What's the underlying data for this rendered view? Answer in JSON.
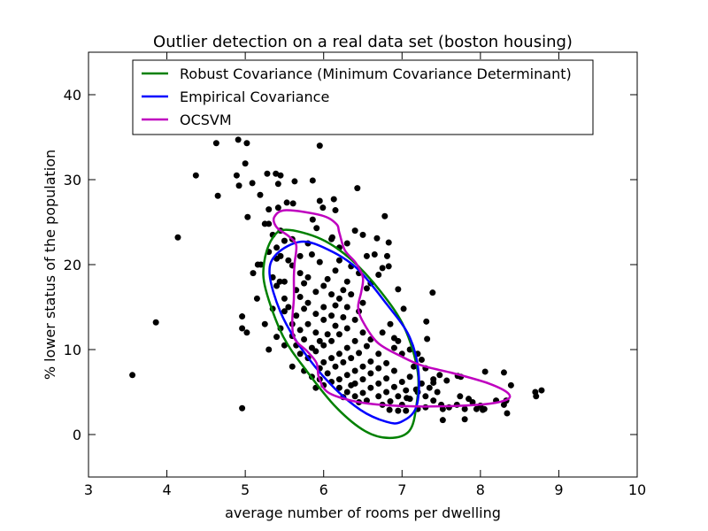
{
  "chart_data": {
    "type": "scatter",
    "title": "Outlier detection on a real data set (boston housing)",
    "xlabel": "average number of rooms per dwelling",
    "ylabel": "% lower status of the population",
    "xlim": [
      3,
      10
    ],
    "ylim": [
      -5,
      45
    ],
    "xticks": [
      3,
      4,
      5,
      6,
      7,
      8,
      9,
      10
    ],
    "yticks": [
      0,
      10,
      20,
      30,
      40
    ],
    "grid": false,
    "legend_position": "top",
    "legend": [
      {
        "label": "Robust Covariance (Minimum Covariance Determinant)",
        "color": "#008000"
      },
      {
        "label": "Empirical Covariance",
        "color": "#0000ff"
      },
      {
        "label": "OCSVM",
        "color": "#bf00bf"
      }
    ],
    "marker_color": "#000000",
    "contours": [
      {
        "name": "Robust Covariance (Minimum Covariance Determinant)",
        "color": "#008000",
        "points": [
          [
            5.52,
            24.1
          ],
          [
            5.97,
            23.0
          ],
          [
            6.35,
            20.6
          ],
          [
            6.73,
            16.8
          ],
          [
            7.03,
            12.6
          ],
          [
            7.2,
            7.4
          ],
          [
            7.18,
            3.2
          ],
          [
            7.09,
            0.4
          ],
          [
            6.84,
            -0.4
          ],
          [
            6.53,
            0.4
          ],
          [
            6.16,
            3.2
          ],
          [
            5.79,
            7.4
          ],
          [
            5.48,
            11.6
          ],
          [
            5.26,
            17.1
          ],
          [
            5.24,
            20.2
          ],
          [
            5.34,
            23.0
          ]
        ]
      },
      {
        "name": "Empirical Covariance",
        "color": "#0000ff",
        "points": [
          [
            5.71,
            22.7
          ],
          [
            6.05,
            21.8
          ],
          [
            6.42,
            19.6
          ],
          [
            6.8,
            15.4
          ],
          [
            7.09,
            11.6
          ],
          [
            7.21,
            7.4
          ],
          [
            7.18,
            3.2
          ],
          [
            6.99,
            1.5
          ],
          [
            6.8,
            1.5
          ],
          [
            6.47,
            2.9
          ],
          [
            6.08,
            6.0
          ],
          [
            5.71,
            10.2
          ],
          [
            5.45,
            14.4
          ],
          [
            5.31,
            18.9
          ],
          [
            5.4,
            21.25
          ]
        ]
      },
      {
        "name": "OCSVM",
        "color": "#bf00bf",
        "points": [
          [
            5.37,
            25.6
          ],
          [
            5.52,
            26.4
          ],
          [
            5.97,
            25.8
          ],
          [
            6.16,
            24.8
          ],
          [
            6.2,
            23.75
          ],
          [
            6.27,
            21.7
          ],
          [
            6.41,
            20.2
          ],
          [
            6.5,
            18.5
          ],
          [
            6.48,
            16.8
          ],
          [
            6.44,
            15.0
          ],
          [
            6.5,
            13.3
          ],
          [
            6.69,
            10.8
          ],
          [
            6.99,
            9.2
          ],
          [
            7.26,
            8.1
          ],
          [
            7.66,
            7.2
          ],
          [
            8.11,
            6.0
          ],
          [
            8.36,
            4.8
          ],
          [
            8.31,
            4.0
          ],
          [
            7.97,
            3.5
          ],
          [
            7.29,
            3.3
          ],
          [
            6.73,
            3.5
          ],
          [
            6.35,
            4.0
          ],
          [
            6.05,
            5.0
          ],
          [
            5.94,
            6.7
          ],
          [
            5.91,
            8.4
          ],
          [
            5.79,
            9.8
          ],
          [
            5.63,
            11.25
          ],
          [
            5.6,
            13.3
          ],
          [
            5.62,
            16.0
          ],
          [
            5.62,
            18.5
          ],
          [
            5.63,
            20.2
          ],
          [
            5.65,
            22.3
          ],
          [
            5.56,
            23.3
          ],
          [
            5.4,
            24.4
          ]
        ]
      }
    ],
    "points": [
      [
        4.63,
        34.3
      ],
      [
        4.91,
        34.7
      ],
      [
        5.02,
        34.3
      ],
      [
        5.95,
        34.0
      ],
      [
        4.37,
        30.5
      ],
      [
        5.0,
        31.9
      ],
      [
        4.89,
        30.5
      ],
      [
        4.92,
        29.3
      ],
      [
        5.09,
        29.6
      ],
      [
        5.28,
        30.7
      ],
      [
        5.39,
        30.7
      ],
      [
        5.45,
        30.5
      ],
      [
        5.63,
        29.8
      ],
      [
        5.86,
        29.9
      ],
      [
        5.42,
        29.5
      ],
      [
        4.65,
        28.1
      ],
      [
        5.19,
        28.2
      ],
      [
        5.03,
        25.6
      ],
      [
        5.3,
        26.5
      ],
      [
        5.42,
        26.7
      ],
      [
        5.53,
        27.3
      ],
      [
        5.61,
        27.2
      ],
      [
        5.95,
        27.5
      ],
      [
        6.13,
        27.7
      ],
      [
        5.99,
        26.7
      ],
      [
        6.15,
        26.4
      ],
      [
        5.3,
        24.8
      ],
      [
        5.86,
        25.3
      ],
      [
        5.91,
        24.3
      ],
      [
        4.14,
        23.2
      ],
      [
        6.11,
        23.2
      ],
      [
        5.16,
        20.0
      ],
      [
        5.4,
        20.7
      ],
      [
        5.44,
        18.0
      ],
      [
        3.56,
        7.0
      ],
      [
        3.86,
        13.2
      ],
      [
        4.96,
        13.9
      ],
      [
        4.96,
        12.5
      ],
      [
        5.02,
        12.0
      ],
      [
        4.96,
        3.1
      ],
      [
        6.43,
        29.0
      ],
      [
        6.78,
        25.7
      ],
      [
        6.68,
        23.1
      ],
      [
        6.83,
        22.6
      ],
      [
        6.81,
        21.0
      ],
      [
        6.83,
        19.8
      ],
      [
        6.95,
        17.1
      ],
      [
        7.02,
        14.8
      ],
      [
        7.39,
        16.7
      ],
      [
        7.31,
        13.3
      ],
      [
        7.32,
        11.25
      ],
      [
        6.9,
        11.35
      ],
      [
        7.48,
        7.0
      ],
      [
        7.4,
        6.1
      ],
      [
        7.52,
        1.7
      ],
      [
        8.06,
        7.4
      ],
      [
        8.3,
        7.3
      ],
      [
        8.39,
        5.8
      ],
      [
        8.33,
        4.0
      ],
      [
        8.34,
        2.5
      ],
      [
        8.7,
        5.0
      ],
      [
        8.71,
        4.5
      ],
      [
        8.78,
        5.2
      ],
      [
        7.8,
        1.8
      ],
      [
        8.03,
        2.9
      ],
      [
        7.74,
        4.5
      ],
      [
        7.52,
        3.0
      ],
      [
        7.18,
        5.3
      ],
      [
        7.06,
        4.3
      ],
      [
        6.84,
        2.9
      ],
      [
        7.71,
        6.9
      ],
      [
        7.57,
        6.35
      ],
      [
        5.6,
        19.9
      ],
      [
        5.7,
        19.0
      ],
      [
        5.75,
        17.8
      ],
      [
        5.8,
        18.5
      ],
      [
        5.65,
        17.0
      ],
      [
        5.7,
        16.2
      ],
      [
        5.8,
        15.5
      ],
      [
        5.9,
        16.8
      ],
      [
        6.0,
        17.5
      ],
      [
        6.05,
        18.3
      ],
      [
        6.1,
        16.5
      ],
      [
        6.0,
        15.0
      ],
      [
        5.9,
        14.2
      ],
      [
        5.75,
        14.8
      ],
      [
        5.65,
        14.0
      ],
      [
        5.6,
        13.0
      ],
      [
        5.7,
        12.3
      ],
      [
        5.8,
        13.0
      ],
      [
        5.9,
        12.0
      ],
      [
        6.0,
        13.5
      ],
      [
        6.1,
        14.0
      ],
      [
        6.15,
        15.2
      ],
      [
        6.2,
        16.0
      ],
      [
        6.25,
        17.0
      ],
      [
        6.3,
        18.0
      ],
      [
        6.35,
        16.5
      ],
      [
        6.3,
        15.0
      ],
      [
        6.25,
        13.8
      ],
      [
        6.15,
        12.8
      ],
      [
        6.05,
        11.8
      ],
      [
        5.95,
        11.0
      ],
      [
        5.85,
        10.2
      ],
      [
        5.75,
        11.2
      ],
      [
        5.65,
        10.5
      ],
      [
        5.6,
        11.6
      ],
      [
        5.7,
        9.5
      ],
      [
        5.8,
        9.0
      ],
      [
        5.9,
        9.8
      ],
      [
        6.0,
        10.5
      ],
      [
        6.1,
        11.0
      ],
      [
        6.2,
        11.8
      ],
      [
        6.3,
        12.5
      ],
      [
        6.4,
        13.5
      ],
      [
        6.45,
        14.5
      ],
      [
        6.5,
        12.0
      ],
      [
        6.4,
        11.0
      ],
      [
        6.3,
        10.2
      ],
      [
        6.2,
        9.5
      ],
      [
        6.1,
        9.0
      ],
      [
        6.0,
        8.5
      ],
      [
        5.95,
        7.8
      ],
      [
        6.05,
        7.2
      ],
      [
        6.15,
        8.0
      ],
      [
        6.25,
        8.5
      ],
      [
        6.35,
        9.0
      ],
      [
        6.45,
        9.6
      ],
      [
        6.55,
        10.4
      ],
      [
        6.6,
        11.2
      ],
      [
        6.7,
        9.5
      ],
      [
        6.6,
        8.6
      ],
      [
        6.5,
        8.0
      ],
      [
        6.4,
        7.5
      ],
      [
        6.3,
        7.0
      ],
      [
        6.2,
        6.5
      ],
      [
        6.1,
        6.2
      ],
      [
        6.0,
        5.8
      ],
      [
        5.95,
        6.5
      ],
      [
        6.2,
        5.5
      ],
      [
        6.3,
        5.0
      ],
      [
        6.4,
        6.0
      ],
      [
        6.5,
        6.5
      ],
      [
        6.6,
        7.2
      ],
      [
        6.7,
        7.8
      ],
      [
        6.8,
        8.4
      ],
      [
        6.9,
        7.5
      ],
      [
        6.8,
        6.6
      ],
      [
        6.7,
        6.0
      ],
      [
        6.6,
        5.5
      ],
      [
        6.5,
        4.9
      ],
      [
        6.4,
        4.5
      ],
      [
        6.55,
        4.0
      ],
      [
        6.7,
        4.5
      ],
      [
        6.8,
        5.0
      ],
      [
        6.9,
        5.6
      ],
      [
        7.0,
        6.2
      ],
      [
        7.1,
        6.8
      ],
      [
        7.05,
        5.2
      ],
      [
        6.95,
        4.5
      ],
      [
        6.85,
        3.9
      ],
      [
        7.0,
        3.5
      ],
      [
        7.1,
        4.2
      ],
      [
        7.2,
        5.0
      ],
      [
        7.25,
        6.0
      ],
      [
        7.2,
        3.0
      ],
      [
        6.95,
        2.8
      ],
      [
        7.05,
        2.8
      ],
      [
        6.75,
        3.5
      ],
      [
        6.35,
        5.8
      ],
      [
        6.45,
        3.8
      ],
      [
        6.25,
        4.4
      ],
      [
        7.3,
        4.5
      ],
      [
        7.35,
        5.5
      ],
      [
        7.4,
        4.0
      ],
      [
        7.15,
        8.0
      ],
      [
        7.25,
        8.8
      ],
      [
        7.0,
        9.5
      ],
      [
        6.5,
        15.5
      ],
      [
        6.55,
        17.2
      ],
      [
        6.45,
        19.0
      ],
      [
        6.35,
        19.8
      ],
      [
        6.2,
        20.5
      ],
      [
        6.15,
        19.3
      ],
      [
        5.95,
        20.3
      ],
      [
        5.85,
        21.2
      ],
      [
        5.7,
        21.0
      ],
      [
        5.55,
        20.5
      ],
      [
        5.45,
        21.0
      ],
      [
        5.5,
        18.0
      ],
      [
        5.5,
        16.0
      ],
      [
        5.55,
        15.0
      ],
      [
        5.5,
        14.5
      ],
      [
        5.45,
        12.5
      ],
      [
        5.4,
        11.5
      ],
      [
        5.5,
        10.5
      ],
      [
        5.6,
        8.0
      ],
      [
        5.75,
        7.5
      ],
      [
        5.85,
        6.8
      ],
      [
        5.9,
        5.5
      ],
      [
        6.2,
        22.0
      ],
      [
        6.1,
        23.0
      ],
      [
        6.4,
        24.0
      ],
      [
        6.5,
        23.5
      ],
      [
        6.3,
        22.5
      ],
      [
        6.55,
        21.0
      ],
      [
        6.65,
        21.2
      ],
      [
        6.75,
        19.6
      ],
      [
        6.7,
        18.8
      ],
      [
        6.6,
        17.8
      ],
      [
        6.85,
        13.0
      ],
      [
        6.75,
        12.0
      ],
      [
        6.9,
        10.2
      ],
      [
        6.95,
        11.0
      ],
      [
        7.1,
        10.0
      ],
      [
        7.2,
        9.5
      ],
      [
        5.4,
        22.0
      ],
      [
        5.5,
        22.8
      ],
      [
        5.35,
        23.5
      ],
      [
        5.45,
        24.0
      ],
      [
        5.6,
        23.0
      ],
      [
        5.8,
        22.5
      ],
      [
        5.3,
        10.0
      ],
      [
        5.25,
        13.0
      ],
      [
        5.35,
        14.8
      ],
      [
        5.4,
        17.5
      ],
      [
        5.35,
        18.5
      ],
      [
        5.2,
        20.0
      ],
      [
        5.25,
        24.8
      ],
      [
        5.3,
        21.5
      ],
      [
        5.15,
        16.0
      ],
      [
        5.1,
        19.0
      ],
      [
        7.6,
        3.2
      ],
      [
        7.7,
        3.5
      ],
      [
        7.8,
        3.0
      ],
      [
        7.9,
        3.8
      ],
      [
        8.0,
        3.4
      ],
      [
        7.85,
        4.2
      ],
      [
        7.5,
        3.5
      ],
      [
        7.45,
        5.0
      ],
      [
        7.4,
        6.5
      ],
      [
        7.3,
        7.8
      ],
      [
        7.3,
        3.2
      ],
      [
        7.95,
        3.0
      ],
      [
        8.05,
        3.0
      ],
      [
        8.3,
        3.5
      ],
      [
        8.2,
        4.0
      ],
      [
        7.75,
        6.8
      ]
    ]
  }
}
